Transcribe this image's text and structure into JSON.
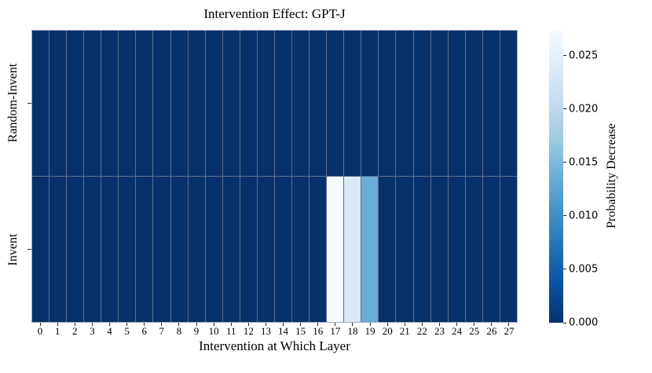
{
  "chart_data": {
    "type": "heatmap",
    "title": "Intervention Effect: GPT-J",
    "xlabel": "Intervention at Which Layer",
    "rows": [
      "Random-Invent",
      "Invent"
    ],
    "columns": [
      0,
      1,
      2,
      3,
      4,
      5,
      6,
      7,
      8,
      9,
      10,
      11,
      12,
      13,
      14,
      15,
      16,
      17,
      18,
      19,
      20,
      21,
      22,
      23,
      24,
      25,
      26,
      27
    ],
    "series": [
      {
        "name": "Random-Invent",
        "values": [
          0,
          0,
          0,
          0,
          0,
          0,
          0,
          0,
          0,
          0,
          0,
          0,
          0,
          0,
          0,
          0,
          0,
          0,
          0,
          0,
          0,
          0,
          0,
          0,
          0,
          0,
          0,
          0
        ]
      },
      {
        "name": "Invent",
        "values": [
          0,
          0,
          0,
          0,
          0,
          0,
          0,
          0,
          0,
          0,
          0,
          0,
          0,
          0,
          0,
          0,
          0,
          0.0273,
          0.0235,
          0.0135,
          0,
          0,
          0,
          0,
          0,
          0,
          0,
          0
        ]
      }
    ],
    "vmin": 0.0,
    "vmax": 0.0274,
    "colorbar_label": "Probability Decrease",
    "colorbar_ticks": [
      0.0,
      0.005,
      0.01,
      0.015,
      0.02,
      0.025
    ],
    "colorbar_tick_labels": [
      "0.000",
      "0.005",
      "0.010",
      "0.015",
      "0.020",
      "0.025"
    ],
    "colormap": {
      "name": "Blues (value 0 = dark, max = light)",
      "stops_dark_to_light": [
        "#08306b",
        "#08519c",
        "#2171b5",
        "#4292c6",
        "#6baed6",
        "#9ecae1",
        "#c6dbef",
        "#deebf7",
        "#f7fbff"
      ]
    },
    "grid": {
      "linecolor": "#5c6d8e",
      "outer_border": "#a6adb9"
    },
    "legend_position": "right-colorbar"
  }
}
